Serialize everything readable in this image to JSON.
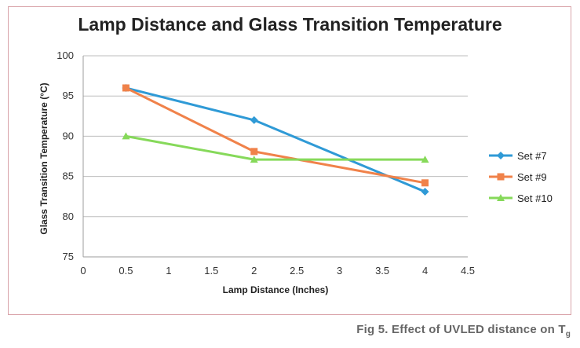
{
  "chart_data": {
    "type": "line",
    "title": "Lamp Distance and Glass Transition Temperature",
    "xlabel": "Lamp Distance  (Inches)",
    "ylabel": "Glass Transition Temperature (°C)",
    "xlim": [
      0,
      4.5
    ],
    "ylim": [
      75,
      100
    ],
    "xticks": [
      "0",
      "0.5",
      "1",
      "1.5",
      "2",
      "2.5",
      "3",
      "3.5",
      "4",
      "4.5"
    ],
    "yticks": [
      "75",
      "80",
      "85",
      "90",
      "95",
      "100"
    ],
    "grid": "horizontal",
    "legend_position": "right",
    "x": [
      0.5,
      2,
      4
    ],
    "series": [
      {
        "name": "Set #7",
        "values": [
          96.0,
          92.0,
          83.1
        ],
        "color": "#2f9ad6",
        "marker": "diamond"
      },
      {
        "name": "Set #9",
        "values": [
          96.0,
          88.1,
          84.2
        ],
        "color": "#f0824a",
        "marker": "square"
      },
      {
        "name": "Set #10",
        "values": [
          90.0,
          87.1,
          87.1
        ],
        "color": "#86d95a",
        "marker": "triangle"
      }
    ]
  },
  "caption": {
    "text": "Fig 5. Effect of UVLED distance on T",
    "subscript": "g"
  }
}
